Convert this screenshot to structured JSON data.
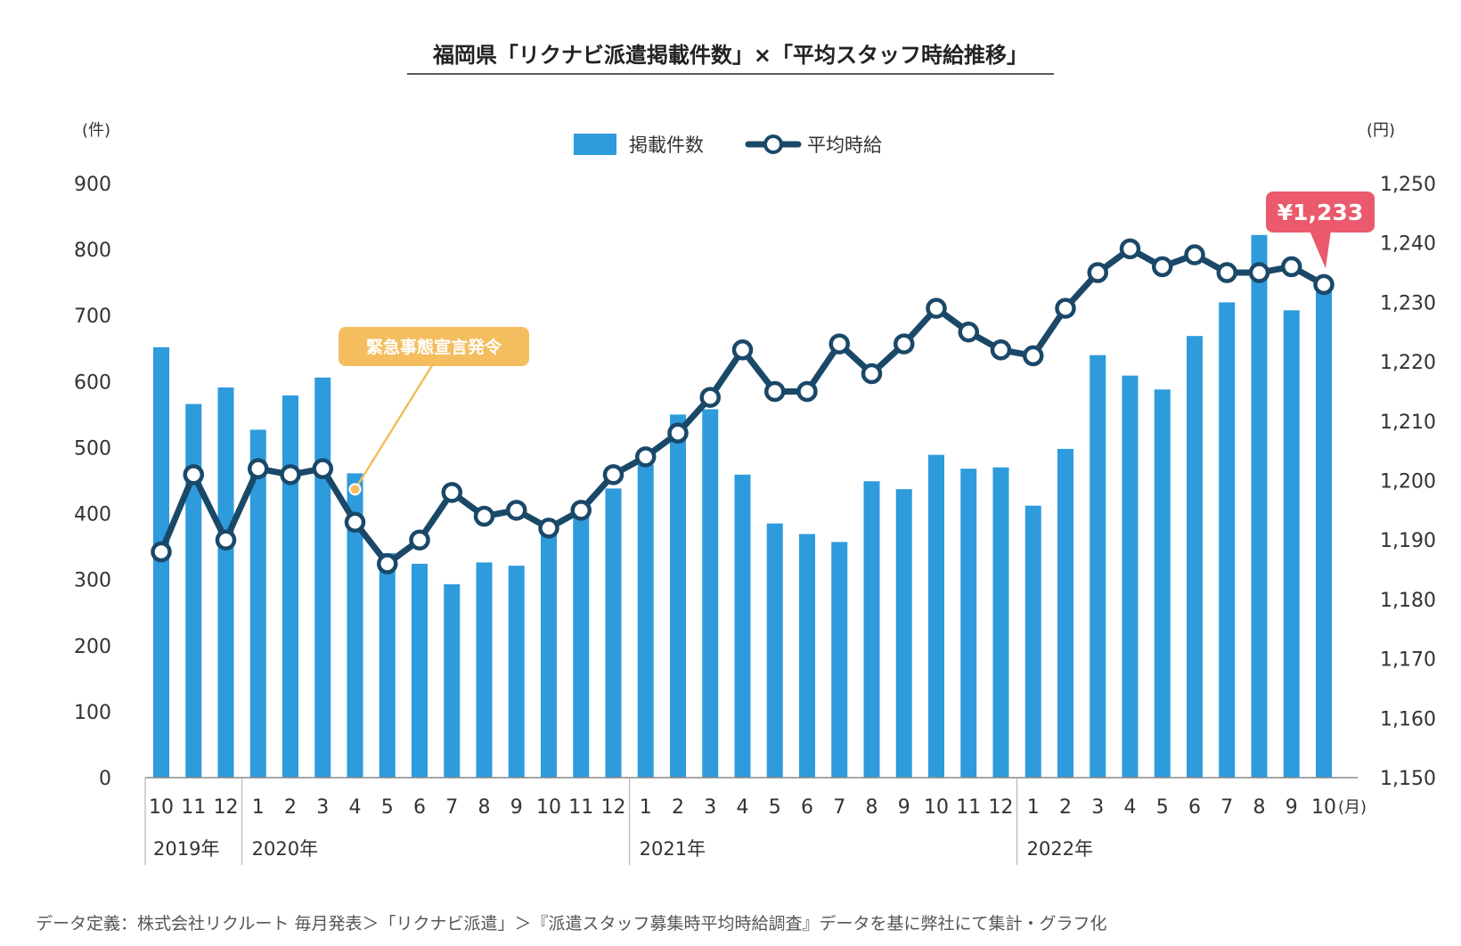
{
  "title": "福岡県「リクナビ派遣掲載件数」×「平均スタッフ時給推移」",
  "left_unit": "(件)",
  "right_unit": "(円)",
  "month_unit": "(月)",
  "legend": {
    "bars": "掲載件数",
    "line": "平均時給"
  },
  "callout": "緊急事態宣言発令",
  "badge": "¥1,233",
  "footnote": "データ定義：株式会社リクルート 毎月発表＞「リクナビ派遣」＞『派遣スタッフ募集時平均時給調査』データを基に弊社にて集計・グラフ化",
  "colors": {
    "bar": "#2e9bdc",
    "line": "#1a4868",
    "callout": "#f4bd5e",
    "badge": "#ea5a6c"
  },
  "chart_data": {
    "type": "bar+line",
    "categories": [
      "10",
      "11",
      "12",
      "1",
      "2",
      "3",
      "4",
      "5",
      "6",
      "7",
      "8",
      "9",
      "10",
      "11",
      "12",
      "1",
      "2",
      "3",
      "4",
      "5",
      "6",
      "7",
      "8",
      "9",
      "10",
      "11",
      "12",
      "1",
      "2",
      "3",
      "4",
      "5",
      "6",
      "7",
      "8",
      "9",
      "10"
    ],
    "years": [
      {
        "label": "2019年",
        "start": 0,
        "count": 3
      },
      {
        "label": "2020年",
        "start": 3,
        "count": 12
      },
      {
        "label": "2021年",
        "start": 15,
        "count": 12
      },
      {
        "label": "2022年",
        "start": 27,
        "count": 10
      }
    ],
    "series": [
      {
        "name": "掲載件数",
        "axis": "left",
        "values": [
          652,
          566,
          591,
          527,
          579,
          606,
          461,
          340,
          324,
          293,
          326,
          321,
          380,
          402,
          438,
          474,
          550,
          558,
          459,
          385,
          369,
          357,
          449,
          437,
          489,
          468,
          470,
          412,
          498,
          640,
          609,
          588,
          669,
          720,
          822,
          708,
          740
        ]
      },
      {
        "name": "平均時給",
        "axis": "right",
        "values": [
          1188,
          1201,
          1190,
          1202,
          1201,
          1202,
          1193,
          1186,
          1190,
          1198,
          1194,
          1195,
          1192,
          1195,
          1201,
          1204,
          1208,
          1214,
          1222,
          1215,
          1215,
          1223,
          1218,
          1223,
          1229,
          1225,
          1222,
          1221,
          1229,
          1235,
          1239,
          1236,
          1238,
          1235,
          1235,
          1236,
          1233
        ]
      }
    ],
    "left_axis": {
      "ylim": [
        0,
        900
      ],
      "ticks": [
        0,
        100,
        200,
        300,
        400,
        500,
        600,
        700,
        800,
        900
      ]
    },
    "right_axis": {
      "ylim": [
        1150,
        1250
      ],
      "ticks": [
        "1,150",
        "1,160",
        "1,170",
        "1,180",
        "1,190",
        "1,200",
        "1,210",
        "1,220",
        "1,230",
        "1,240",
        "1,250"
      ]
    },
    "callout_index": 6,
    "badge_index": 36,
    "legend_position": "top-center",
    "grid": false
  }
}
